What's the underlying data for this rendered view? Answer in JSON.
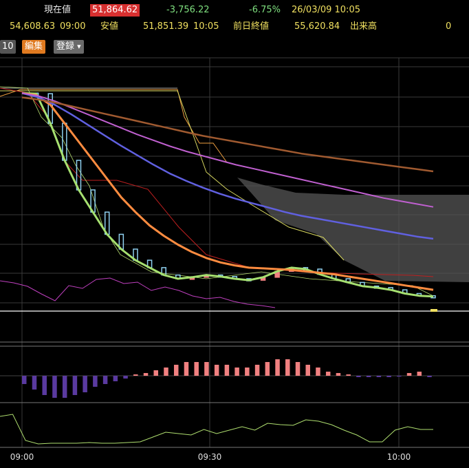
{
  "header": {
    "price_label": "現在値",
    "price": "51,864.62",
    "change": "-3,756.22",
    "change_pct": "-6.75%",
    "datetime": "26/03/09  10:05",
    "open_value": "54,608.63",
    "open_time": "09:00",
    "low_label": "安値",
    "low_value": "51,851.39",
    "low_time": "10:05",
    "prev_close_label": "前日終値",
    "prev_close_value": "55,620.84",
    "volume_label": "出来高",
    "volume_value": "0"
  },
  "toolbar": {
    "period": "10",
    "edit_label": "編集",
    "register_label": "登録",
    "register_arrow": "▾"
  },
  "colors": {
    "price_highlight": "#d83030",
    "edit_button": "#e07a20",
    "register_button": "#6a6a6a",
    "candle_down": "#8fd0f0",
    "candle_up": "#f08080",
    "ma_fast": "#a6e070",
    "ma_mid": "#ff8c40",
    "ma_slow1": "#6060e0",
    "ma_slow2": "#c060d0",
    "ma_slow3": "#a05a30",
    "cloud": "#555555",
    "macd_pos": "#f08080",
    "macd_neg": "#5a3aa0",
    "oscillator": "#b0e070",
    "rsi": "#c040c0"
  },
  "chart_data": {
    "type": "line",
    "title": "",
    "x_ticks": [
      "09:00",
      "09:30",
      "10:00"
    ],
    "x_range": [
      "09:00",
      "10:05"
    ],
    "series": [
      {
        "values": [
          54608,
          54600,
          54200,
          53700,
          53300,
          53000,
          52700,
          52500,
          52350,
          52250,
          52150,
          52100,
          52120,
          52150,
          52130,
          52100,
          52080,
          52120,
          52200,
          52250,
          52230,
          52160,
          52100,
          52050,
          52000,
          51980,
          51950,
          51900,
          51870,
          51860
        ]
      },
      {
        "values": [
          54608,
          54580,
          54450,
          54200,
          53950,
          53700,
          53450,
          53200,
          53000,
          52820,
          52680,
          52560,
          52460,
          52380,
          52320,
          52280,
          52250,
          52240,
          52230,
          52220,
          52200,
          52180,
          52160,
          52130,
          52100,
          52070,
          52040,
          52010,
          51980,
          51950
        ]
      },
      {
        "values": [
          54608,
          54550,
          54450,
          54320,
          54180,
          54040,
          53900,
          53770,
          53640,
          53520,
          53420,
          53330,
          53250,
          53180,
          53120,
          53060,
          53000,
          52950,
          52910,
          52870,
          52830,
          52790,
          52750,
          52710,
          52670,
          52640
        ]
      },
      {
        "values": [
          54608,
          54570,
          54500,
          54410,
          54320,
          54230,
          54140,
          54050,
          53970,
          53890,
          53820,
          53760,
          53700,
          53640,
          53590,
          53540,
          53490,
          53440,
          53390,
          53340,
          53290,
          53240,
          53190,
          53150,
          53110,
          53070
        ]
      },
      {
        "values": [
          54550,
          54520,
          54480,
          54430,
          54380,
          54330,
          54280,
          54230,
          54180,
          54130,
          54080,
          54030,
          53990,
          53950,
          53910,
          53870,
          53830,
          53790,
          53760,
          53730,
          53700,
          53670,
          53640,
          53610,
          53580,
          53550
        ]
      }
    ],
    "macd_histogram": [
      -3,
      -5,
      -7,
      -8,
      -8,
      -7,
      -6,
      -4,
      -3,
      -2,
      -1,
      0.5,
      1,
      2,
      3,
      4,
      5,
      5,
      5,
      4,
      4,
      3,
      3,
      4,
      5,
      6,
      6,
      5,
      4,
      3,
      1.5,
      1,
      0.5,
      -0.5,
      -0.5,
      -0.5,
      -0.5,
      -0.3,
      1,
      1.5,
      -0.5
    ],
    "oscillator": [
      45,
      48,
      10,
      5,
      6,
      6,
      6,
      7,
      6,
      6,
      7,
      8,
      15,
      22,
      20,
      18,
      26,
      20,
      25,
      30,
      25,
      35,
      33,
      32,
      40,
      38,
      33,
      25,
      18,
      8,
      8,
      25,
      30,
      26,
      26
    ],
    "rsi": [
      44,
      41,
      36,
      25,
      15,
      37,
      33,
      46,
      48,
      40,
      42,
      30,
      35,
      30,
      22,
      18,
      20,
      14,
      10,
      8,
      5
    ]
  }
}
